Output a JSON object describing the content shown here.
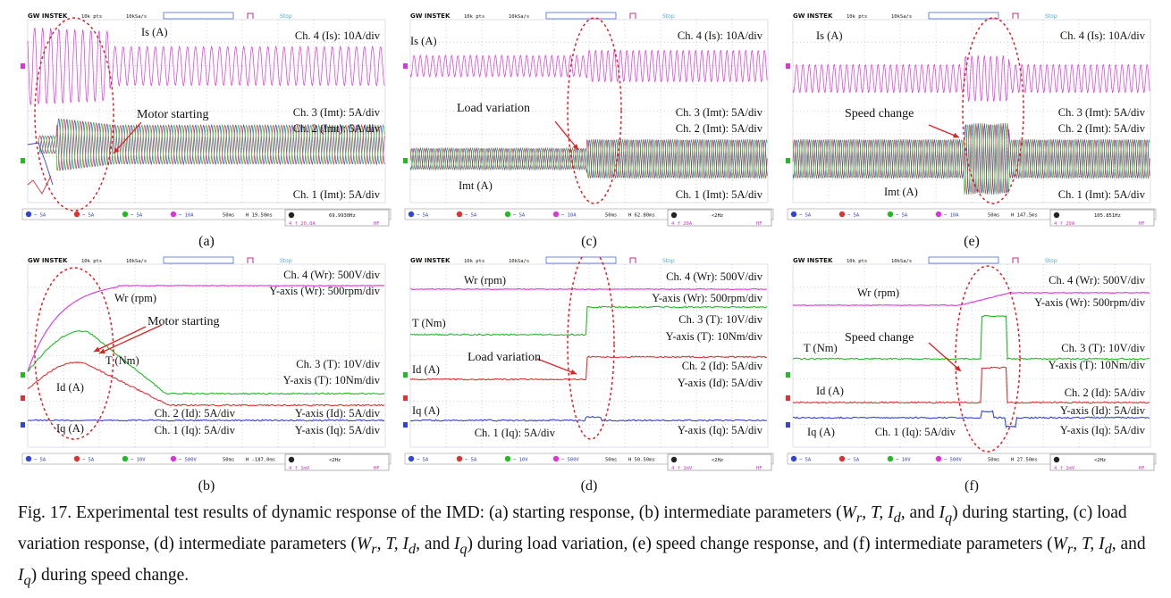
{
  "brand": "GW INSTEK",
  "header_pts": "10k pts",
  "header_rate": "10kSa/s",
  "header_state": "Stop",
  "colors": {
    "ch1": "#3344dd",
    "ch2": "#dd3333",
    "ch3": "#22bb22",
    "ch4": "#dd33dd",
    "grid": "#9aa3c8",
    "ellipse": "#dd2222",
    "arrow": "#dd2222",
    "bar_blue": "#2233bb"
  },
  "panels": [
    {
      "id": "a",
      "label": "(a)",
      "kind": "currents",
      "labels": {
        "is": "Is (A)",
        "imt": ""
      },
      "annotation": "Motor starting",
      "scales": [
        "Ch. 4 (Is): 10A/div",
        "Ch. 3 (Imt): 5A/div",
        "Ch. 2 (Imt): 5A/div",
        "Ch. 1 (Imt): 5A/div"
      ],
      "freq": "69.9930Hz",
      "bottom": {
        "ch1": "5A",
        "ch2": "5A",
        "ch3": "5A",
        "ch4": "10A",
        "time": "50ms",
        "pos": "19.50ms",
        "trig": "20.0A",
        "hf": "HF"
      }
    },
    {
      "id": "c",
      "label": "(c)",
      "kind": "currents",
      "labels": {
        "is": "Is (A)",
        "imt": "Imt (A)"
      },
      "annotation": "Load variation",
      "scales": [
        "Ch. 4 (Is): 10A/div",
        "Ch. 3 (Imt): 5A/div",
        "Ch. 2 (Imt): 5A/div",
        "Ch. 1 (Imt): 5A/div"
      ],
      "freq": "<2Hz",
      "bottom": {
        "ch1": "5A",
        "ch2": "5A",
        "ch3": "5A",
        "ch4": "10A",
        "time": "50ms",
        "pos": "62.80ms",
        "trig": "20A",
        "hf": "HF"
      }
    },
    {
      "id": "e",
      "label": "(e)",
      "kind": "currents",
      "labels": {
        "is": "Is (A)",
        "imt": "Imt (A)"
      },
      "annotation": "Speed change",
      "scales": [
        "Ch. 4 (Is): 10A/div",
        "Ch. 3 (Imt): 5A/div",
        "Ch. 2 (Imt): 5A/div",
        "Ch. 1 (Imt): 5A/div"
      ],
      "freq": "105.851Hz",
      "bottom": {
        "ch1": "5A",
        "ch2": "5A",
        "ch3": "5A",
        "ch4": "10A",
        "time": "50ms",
        "pos": "147.5ms",
        "trig": "20A",
        "hf": "HF"
      }
    },
    {
      "id": "b",
      "label": "(b)",
      "kind": "params",
      "labels": {
        "wr": "Wr (rpm)",
        "t": "T (Nm)",
        "id": "Id (A)",
        "iq": "Iq (A)"
      },
      "annotation": "Motor starting",
      "scales": [
        "Ch. 4 (Wr): 500V/div",
        "Y-axis (Wr): 500rpm/div",
        "Ch. 3 (T): 10V/div",
        "Y-axis (T): 10Nm/div",
        "Ch. 2 (Id): 5A/div",
        "Y-axis (Id): 5A/div",
        "Ch. 1 (Iq): 5A/div",
        "Y-axis (Iq): 5A/div"
      ],
      "freq": "<2Hz",
      "bottom": {
        "ch1": "5A",
        "ch2": "5A",
        "ch3": "10V",
        "ch4": "500V",
        "time": "50ms",
        "pos": "-187.0ms",
        "trig": "1mV",
        "hf": "HF"
      }
    },
    {
      "id": "d",
      "label": "(d)",
      "kind": "params",
      "labels": {
        "wr": "Wr (rpm)",
        "t": "T (Nm)",
        "id": "Id (A)",
        "iq": "Iq (A)"
      },
      "annotation": "Load variation",
      "scales": [
        "Ch. 4 (Wr): 500V/div",
        "Y-axis (Wr): 500rpm/div",
        "Ch. 3 (T): 10V/div",
        "Y-axis (T): 10Nm/div",
        "Ch. 2 (Id): 5A/div",
        "Y-axis (Id): 5A/div",
        "Ch. 1 (Iq): 5A/div",
        "Y-axis (Iq): 5A/div"
      ],
      "freq": "<2Hz",
      "bottom": {
        "ch1": "5A",
        "ch2": "5A",
        "ch3": "10V",
        "ch4": "500V",
        "time": "50ms",
        "pos": "50.50ms",
        "trig": "1mV",
        "hf": "HF"
      }
    },
    {
      "id": "f",
      "label": "(f)",
      "kind": "params",
      "labels": {
        "wr": "Wr (rpm)",
        "t": "T (Nm)",
        "id": "Id (A)",
        "iq": "Iq (A)"
      },
      "annotation": "Speed change",
      "scales": [
        "Ch. 4 (Wr): 500V/div",
        "Y-axis (Wr): 500rpm/div",
        "Ch. 3 (T): 10V/div",
        "Y-axis (T): 10Nm/div",
        "Ch. 2 (Id): 5A/div",
        "Y-axis (Id): 5A/div",
        "Ch. 1 (Iq): 5A/div",
        "Y-axis (Iq): 5A/div"
      ],
      "freq": "<2Hz",
      "bottom": {
        "ch1": "5A",
        "ch2": "5A",
        "ch3": "10V",
        "ch4": "500V",
        "time": "50ms",
        "pos": "27.50ms",
        "trig": "1mV",
        "hf": "HF"
      }
    }
  ],
  "caption": {
    "fig": "Fig. 17.",
    "text": " Experimental test results of dynamic response of the IMD: (a) starting response, (b) intermediate parameters (",
    "part2": ", and ",
    "part3": ") during starting, (c) load variation response, (d) intermediate parameters (",
    "part4": ") during load variation, (e) speed change response, and (f) intermediate parameters (",
    "part5": ") during speed change.",
    "vars": "Wr, T, Id",
    "iq": "Iq"
  }
}
